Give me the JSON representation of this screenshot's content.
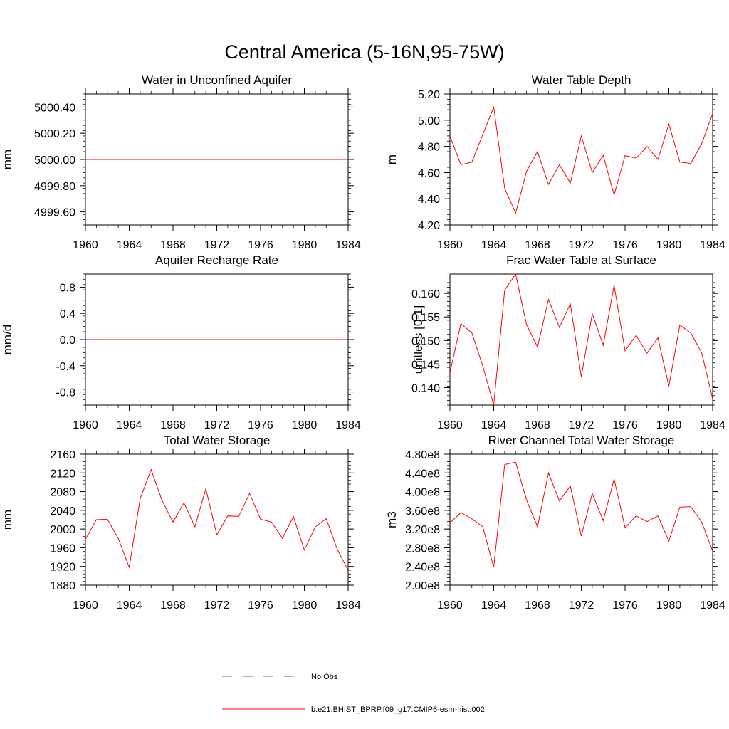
{
  "figure": {
    "title": "Central America (5-16N,95-75W)",
    "legend": {
      "placement": "bottom-center",
      "entries": [
        {
          "label": "No Obs",
          "style": "dashed",
          "color": "#5b5ba8"
        },
        {
          "label": "b.e21.BHIST_BPRP.f09_g17.CMIP6-esm-hist.002",
          "style": "solid",
          "color": "#ff0000"
        }
      ]
    }
  },
  "chart_data": [
    {
      "type": "line",
      "title": "Water in Unconfined Aquifer",
      "ylabel": "mm",
      "xlim": [
        1960,
        1984
      ],
      "ylim": [
        4999.5,
        5000.5
      ],
      "xticks": [
        1960,
        1964,
        1968,
        1972,
        1976,
        1980,
        1984
      ],
      "yticks": [
        4999.6,
        4999.8,
        5000.0,
        5000.2,
        5000.4
      ],
      "ytick_labels": [
        "4999.60",
        "4999.80",
        "5000.00",
        "5000.20",
        "5000.40"
      ],
      "y_minor": 0.04,
      "top_axis_ticks": true,
      "color": "#ff0000",
      "x": [
        1960,
        1961,
        1962,
        1963,
        1964,
        1965,
        1966,
        1967,
        1968,
        1969,
        1970,
        1971,
        1972,
        1973,
        1974,
        1975,
        1976,
        1977,
        1978,
        1979,
        1980,
        1981,
        1982,
        1983,
        1984
      ],
      "y": [
        5000,
        5000,
        5000,
        5000,
        5000,
        5000,
        5000,
        5000,
        5000,
        5000,
        5000,
        5000,
        5000,
        5000,
        5000,
        5000,
        5000,
        5000,
        5000,
        5000,
        5000,
        5000,
        5000,
        5000,
        5000
      ]
    },
    {
      "type": "line",
      "title": "Water Table Depth",
      "ylabel": "m",
      "xlim": [
        1960,
        1984
      ],
      "ylim": [
        4.2,
        5.2
      ],
      "xticks": [
        1960,
        1964,
        1968,
        1972,
        1976,
        1980,
        1984
      ],
      "yticks": [
        4.2,
        4.4,
        4.6,
        4.8,
        5.0,
        5.2
      ],
      "ytick_labels": [
        "4.20",
        "4.40",
        "4.60",
        "4.80",
        "5.00",
        "5.20"
      ],
      "y_minor": 0.04,
      "top_axis_ticks": true,
      "color": "#ff0000",
      "x": [
        1960,
        1961,
        1962,
        1963,
        1964,
        1965,
        1966,
        1967,
        1968,
        1969,
        1970,
        1971,
        1972,
        1973,
        1974,
        1975,
        1976,
        1977,
        1978,
        1979,
        1980,
        1981,
        1982,
        1983,
        1984
      ],
      "y": [
        4.88,
        4.66,
        4.68,
        4.89,
        5.1,
        4.48,
        4.29,
        4.61,
        4.76,
        4.51,
        4.66,
        4.52,
        4.88,
        4.6,
        4.73,
        4.43,
        4.73,
        4.71,
        4.8,
        4.7,
        4.97,
        4.68,
        4.67,
        4.82,
        5.05
      ]
    },
    {
      "type": "line",
      "title": "Aquifer Recharge Rate",
      "ylabel": "mm/d",
      "xlim": [
        1960,
        1984
      ],
      "ylim": [
        -1.0,
        1.0
      ],
      "xticks": [
        1960,
        1964,
        1968,
        1972,
        1976,
        1980,
        1984
      ],
      "yticks": [
        -0.8,
        -0.4,
        0.0,
        0.4,
        0.8
      ],
      "ytick_labels": [
        "-0.8",
        "-0.4",
        "0.0",
        "0.4",
        "0.8"
      ],
      "y_minor": 0.08,
      "top_axis_ticks": false,
      "color": "#ff0000",
      "x": [
        1960,
        1961,
        1962,
        1963,
        1964,
        1965,
        1966,
        1967,
        1968,
        1969,
        1970,
        1971,
        1972,
        1973,
        1974,
        1975,
        1976,
        1977,
        1978,
        1979,
        1980,
        1981,
        1982,
        1983,
        1984
      ],
      "y": [
        0,
        0,
        0,
        0,
        0,
        0,
        0,
        0,
        0,
        0,
        0,
        0,
        0,
        0,
        0,
        0,
        0,
        0,
        0,
        0,
        0,
        0,
        0,
        0,
        0
      ]
    },
    {
      "type": "line",
      "title": "Frac Water Table at Surface",
      "ylabel": "unitless [0-1]",
      "xlim": [
        1960,
        1984
      ],
      "ylim": [
        0.1363,
        0.1641
      ],
      "xticks": [
        1960,
        1964,
        1968,
        1972,
        1976,
        1980,
        1984
      ],
      "yticks": [
        0.14,
        0.145,
        0.15,
        0.155,
        0.16
      ],
      "ytick_labels": [
        "0.140",
        "0.145",
        "0.150",
        "0.155",
        "0.160"
      ],
      "y_minor": 0.001,
      "top_axis_ticks": false,
      "color": "#ff0000",
      "x": [
        1960,
        1961,
        1962,
        1963,
        1964,
        1965,
        1966,
        1967,
        1968,
        1969,
        1970,
        1971,
        1972,
        1973,
        1974,
        1975,
        1976,
        1977,
        1978,
        1979,
        1980,
        1981,
        1982,
        1983,
        1984
      ],
      "y": [
        0.1432,
        0.1536,
        0.1516,
        0.1446,
        0.1363,
        0.1607,
        0.1641,
        0.1534,
        0.1486,
        0.1587,
        0.1528,
        0.1578,
        0.1423,
        0.1557,
        0.149,
        0.1617,
        0.1478,
        0.1511,
        0.1473,
        0.1506,
        0.1403,
        0.1533,
        0.1516,
        0.1474,
        0.1376
      ]
    },
    {
      "type": "line",
      "title": "Total Water Storage",
      "ylabel": "mm",
      "xlim": [
        1960,
        1984
      ],
      "ylim": [
        1880,
        2160
      ],
      "xticks": [
        1960,
        1964,
        1968,
        1972,
        1976,
        1980,
        1984
      ],
      "yticks": [
        1880,
        1920,
        1960,
        2000,
        2040,
        2080,
        2120,
        2160
      ],
      "ytick_labels": [
        "1880",
        "1920",
        "1960",
        "2000",
        "2040",
        "2080",
        "2120",
        "2160"
      ],
      "y_minor": 8,
      "top_axis_ticks": true,
      "color": "#ff0000",
      "x": [
        1960,
        1961,
        1962,
        1963,
        1964,
        1965,
        1966,
        1967,
        1968,
        1969,
        1970,
        1971,
        1972,
        1973,
        1974,
        1975,
        1976,
        1977,
        1978,
        1979,
        1980,
        1981,
        1982,
        1983,
        1984
      ],
      "y": [
        1978,
        2020,
        2021,
        1980,
        1918,
        2065,
        2127,
        2061,
        2015,
        2056,
        2005,
        2086,
        1988,
        2028,
        2027,
        2076,
        2021,
        2015,
        1980,
        2027,
        1955,
        2005,
        2022,
        1957,
        1912
      ]
    },
    {
      "type": "line",
      "title": "River Channel Total Water Storage",
      "ylabel": "m3",
      "xlim": [
        1960,
        1984
      ],
      "ylim": [
        200000000,
        480000000
      ],
      "xticks": [
        1960,
        1964,
        1968,
        1972,
        1976,
        1980,
        1984
      ],
      "yticks": [
        200000000,
        240000000,
        280000000,
        320000000,
        360000000,
        400000000,
        440000000,
        480000000
      ],
      "ytick_labels": [
        "2.00e8",
        "2.40e8",
        "2.80e8",
        "3.20e8",
        "3.60e8",
        "4.00e8",
        "4.40e8",
        "4.80e8"
      ],
      "y_minor": 8000000,
      "top_axis_ticks": true,
      "color": "#ff0000",
      "x": [
        1960,
        1961,
        1962,
        1963,
        1964,
        1965,
        1966,
        1967,
        1968,
        1969,
        1970,
        1971,
        1972,
        1973,
        1974,
        1975,
        1976,
        1977,
        1978,
        1979,
        1980,
        1981,
        1982,
        1983,
        1984
      ],
      "y": [
        333000000,
        355000000,
        342000000,
        325000000,
        238000000,
        458000000,
        463000000,
        382000000,
        325000000,
        440000000,
        380000000,
        412000000,
        305000000,
        396000000,
        338000000,
        427000000,
        323000000,
        348000000,
        336000000,
        348000000,
        294000000,
        367000000,
        368000000,
        335000000,
        273000000
      ]
    }
  ]
}
